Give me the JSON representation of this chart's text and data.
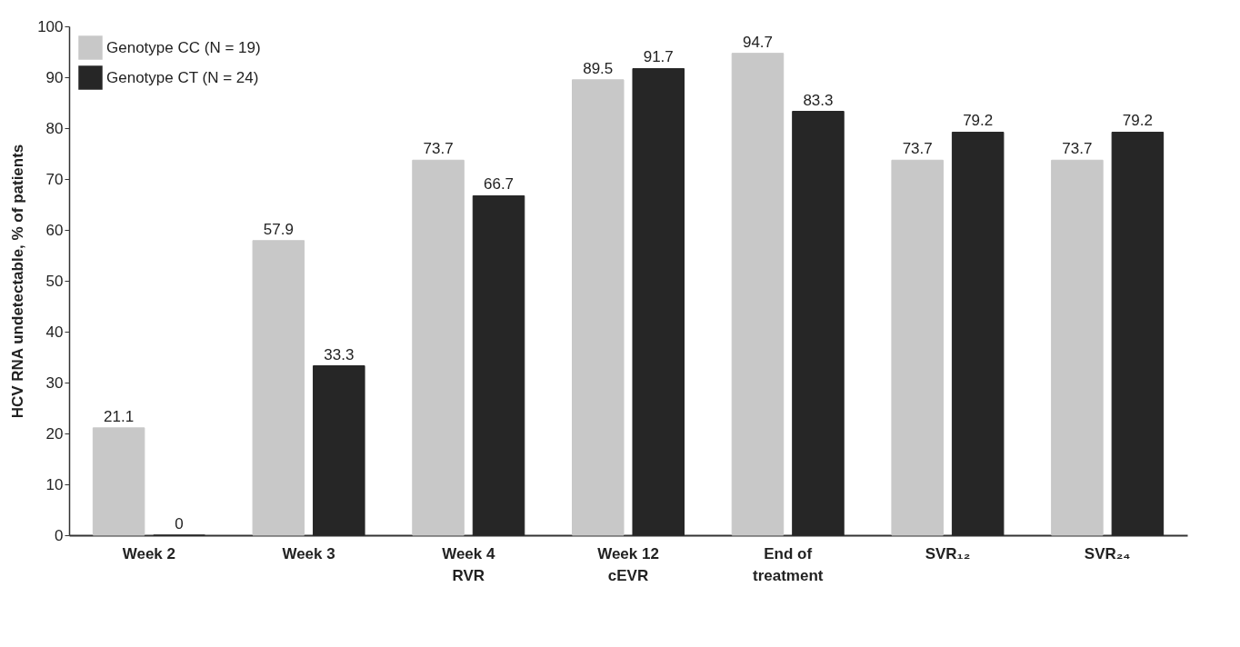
{
  "chart_data": {
    "type": "bar",
    "ylabel": "HCV RNA undetectable, % of patients",
    "categories": [
      "Week 2",
      "Week 3",
      "Week 4\nRVR",
      "Week 12\ncEVR",
      "End of\ntreatment",
      "SVR₁₂",
      "SVR₂₄"
    ],
    "series": [
      {
        "name": "Genotype CC (N = 19)",
        "color": "#c8c8c8",
        "values": [
          21.1,
          57.9,
          73.7,
          89.5,
          94.7,
          73.7,
          73.7
        ]
      },
      {
        "name": "Genotype CT (N = 24)",
        "color": "#262626",
        "values": [
          0,
          33.3,
          66.7,
          91.7,
          83.3,
          79.2,
          79.2
        ]
      }
    ],
    "ylim": [
      0,
      100
    ],
    "yticks": [
      0,
      10,
      20,
      30,
      40,
      50,
      60,
      70,
      80,
      90,
      100
    ],
    "data_labels": true,
    "legend": "top left",
    "grid": false
  }
}
